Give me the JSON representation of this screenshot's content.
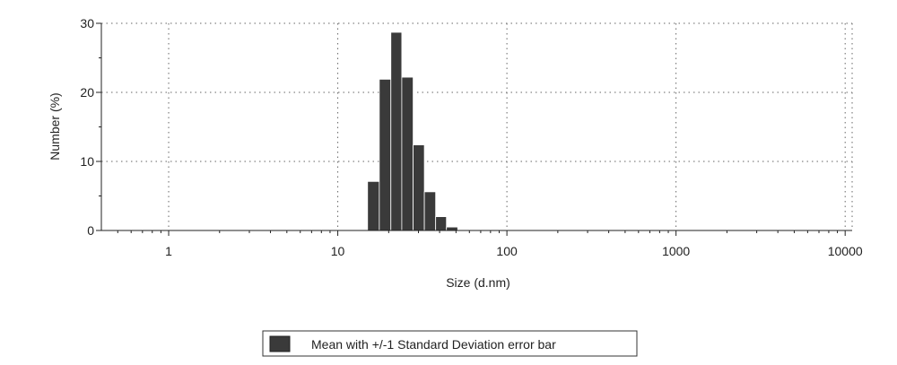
{
  "chart_data": {
    "type": "bar",
    "x_scale": "log",
    "xlabel": "Size (d.nm)",
    "ylabel": "Number (%)",
    "xlim": [
      0.4,
      11000
    ],
    "ylim": [
      0,
      30
    ],
    "x_ticks": [
      1,
      10,
      100,
      1000,
      10000
    ],
    "x_tick_labels": [
      "1",
      "10",
      "100",
      "1000",
      "10000"
    ],
    "y_ticks": [
      0,
      10,
      20,
      30
    ],
    "y_tick_labels": [
      "0",
      "10",
      "20",
      "30"
    ],
    "grid": true,
    "legend_position": "bottom-center",
    "bar_color": "#3a3a3a",
    "series": [
      {
        "name": "Mean with +/-1 Standard Deviation error bar",
        "bins": [
          {
            "x0": 15.0,
            "x1": 17.6,
            "value": 7.1
          },
          {
            "x0": 17.6,
            "x1": 20.6,
            "value": 21.9
          },
          {
            "x0": 20.6,
            "x1": 23.9,
            "value": 28.7
          },
          {
            "x0": 23.9,
            "x1": 27.9,
            "value": 22.2
          },
          {
            "x0": 27.9,
            "x1": 32.5,
            "value": 12.4
          },
          {
            "x0": 32.5,
            "x1": 37.9,
            "value": 5.6
          },
          {
            "x0": 37.9,
            "x1": 43.9,
            "value": 2.0
          },
          {
            "x0": 43.9,
            "x1": 51.2,
            "value": 0.5
          }
        ]
      }
    ]
  }
}
